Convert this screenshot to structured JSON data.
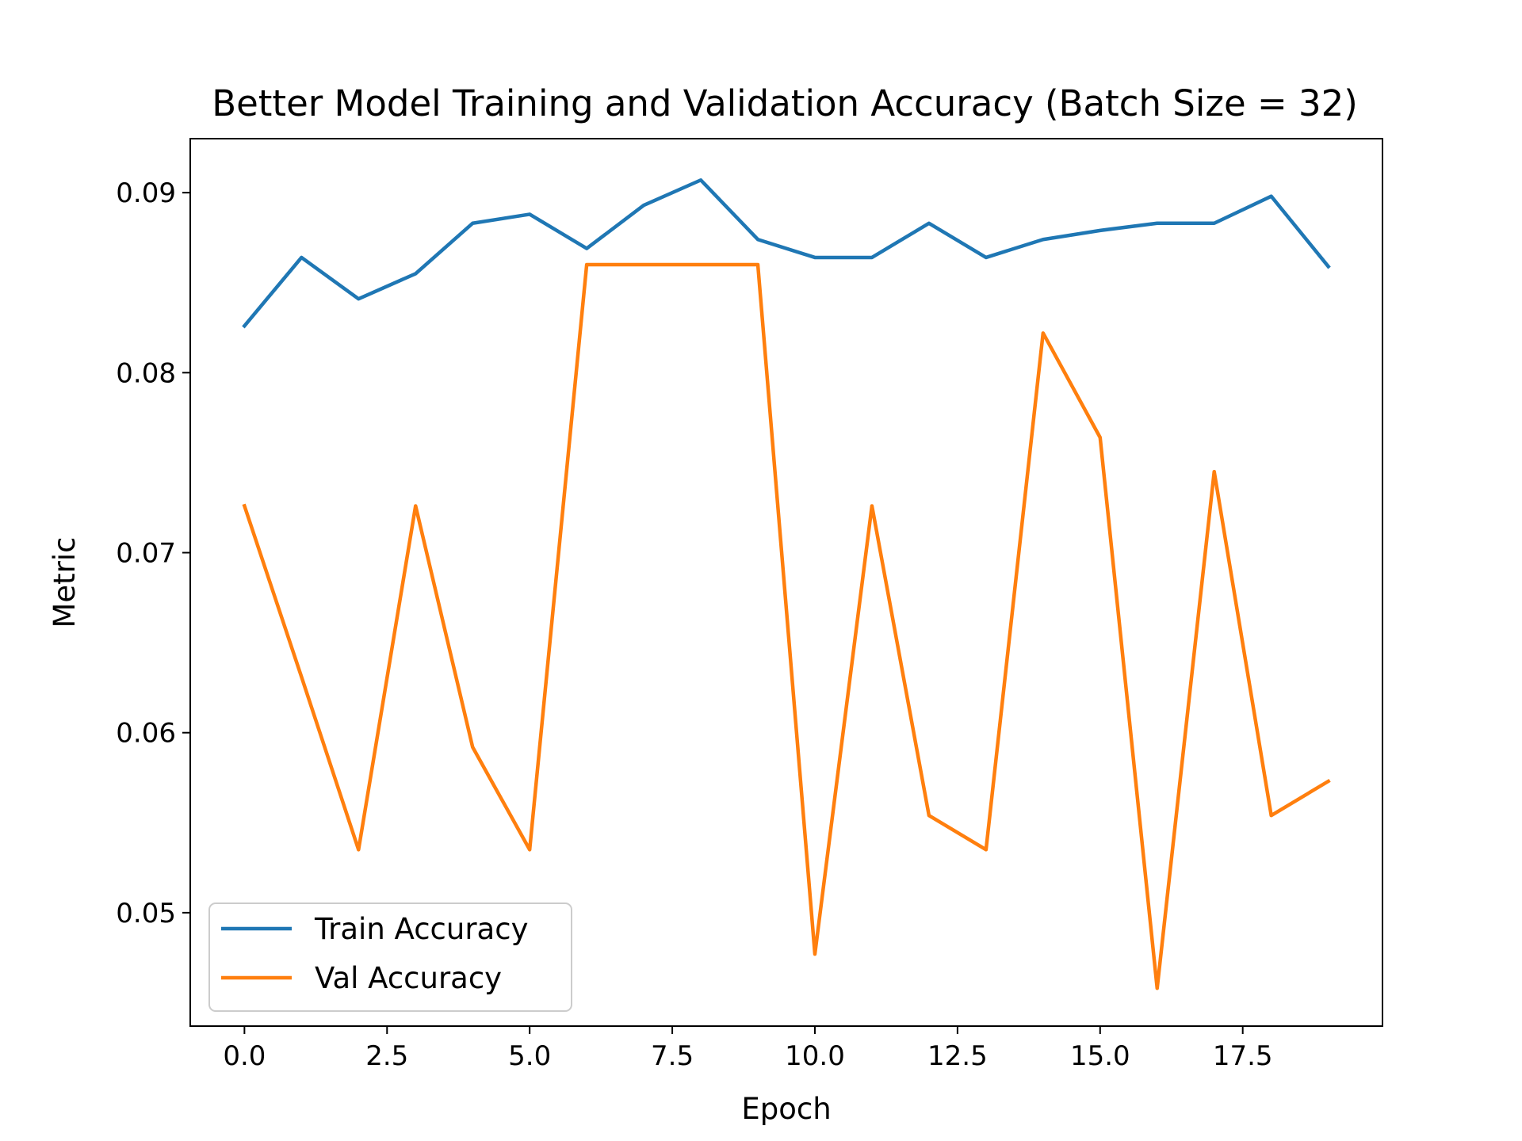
{
  "chart_data": {
    "type": "line",
    "title": "Better Model Training and Validation Accuracy (Batch Size = 32)",
    "xlabel": "Epoch",
    "ylabel": "Metric",
    "xlim": [
      -0.95,
      19.95
    ],
    "ylim": [
      0.0437,
      0.093
    ],
    "xticks": [
      0.0,
      2.5,
      5.0,
      7.5,
      10.0,
      12.5,
      15.0,
      17.5
    ],
    "xtick_labels": [
      "0.0",
      "2.5",
      "5.0",
      "7.5",
      "10.0",
      "12.5",
      "15.0",
      "17.5"
    ],
    "yticks": [
      0.05,
      0.06,
      0.07,
      0.08,
      0.09
    ],
    "ytick_labels": [
      "0.05",
      "0.06",
      "0.07",
      "0.08",
      "0.09"
    ],
    "grid": false,
    "legend_position": "lower-left",
    "x": [
      0,
      1,
      2,
      3,
      4,
      5,
      6,
      7,
      8,
      9,
      10,
      11,
      12,
      13,
      14,
      15,
      16,
      17,
      18,
      19
    ],
    "series": [
      {
        "name": "Train Accuracy",
        "color": "#1f77b4",
        "values": [
          0.0826,
          0.0864,
          0.0841,
          0.0855,
          0.0883,
          0.0888,
          0.0869,
          0.0893,
          0.0907,
          0.0874,
          0.0864,
          0.0864,
          0.0883,
          0.0864,
          0.0874,
          0.0879,
          0.0883,
          0.0883,
          0.0898,
          0.0859
        ]
      },
      {
        "name": "Val Accuracy",
        "color": "#ff7f0e",
        "values": [
          0.0726,
          0.0631,
          0.0535,
          0.0726,
          0.0592,
          0.0535,
          0.086,
          0.086,
          0.086,
          0.086,
          0.0477,
          0.0726,
          0.0554,
          0.0535,
          0.0822,
          0.0764,
          0.0458,
          0.0745,
          0.0554,
          0.0573
        ]
      }
    ]
  }
}
